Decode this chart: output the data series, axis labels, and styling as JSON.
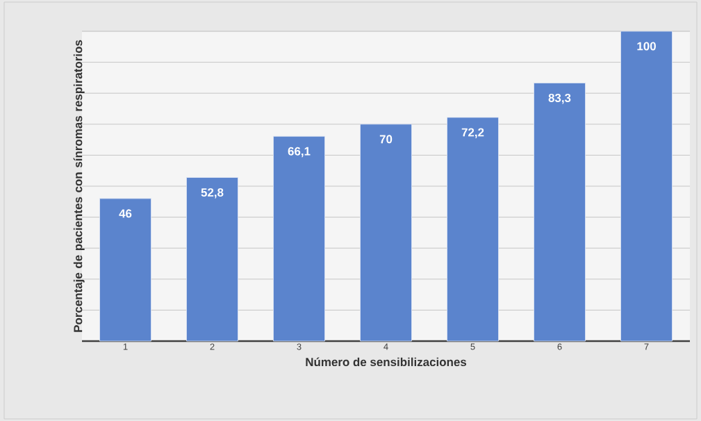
{
  "chart_data": {
    "type": "bar",
    "xlabel": "Número de sensibilizaciones",
    "ylabel": "Porcentaje de pacientes con sínromas respiratorios",
    "categories": [
      "1",
      "2",
      "3",
      "4",
      "5",
      "6",
      "7"
    ],
    "values": [
      46,
      52.8,
      66.1,
      70,
      72.2,
      83.3,
      100
    ],
    "value_labels": [
      "46",
      "52,8",
      "66,1",
      "70",
      "72,2",
      "83,3",
      "100"
    ],
    "color": "#5b84cd",
    "ylim": [
      0,
      100
    ],
    "yticks": [
      {
        "value": 0,
        "label": null
      },
      {
        "value": 10,
        "label": null
      },
      {
        "value": 20,
        "label": null
      },
      {
        "value": 30,
        "label": null
      },
      {
        "value": 40,
        "label": null
      },
      {
        "value": 50,
        "label": null
      },
      {
        "value": 60,
        "label": null
      },
      {
        "value": 70,
        "label": null
      },
      {
        "value": 80,
        "label": null
      },
      {
        "value": 90,
        "label": null
      },
      {
        "value": 100,
        "label": null
      }
    ],
    "grid": "y",
    "tick_labels": "x"
  }
}
